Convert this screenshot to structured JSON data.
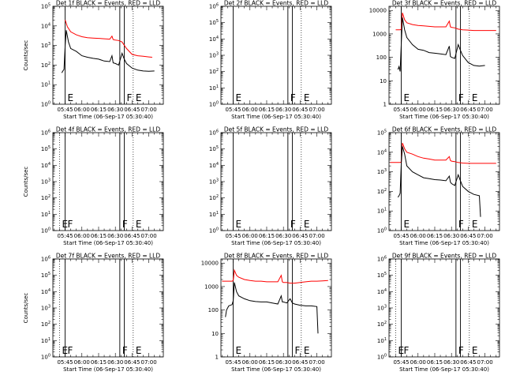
{
  "figure": {
    "xlabel": "Start Time (06-Sep-17 05:30:40)"
  },
  "chart_data": [
    {
      "type": "line",
      "title": "Det 1f BLACK = Events, RED = LLD",
      "ylabel": "Counts/sec",
      "y_scale": "log",
      "yticks": [
        "10^0",
        "10^1",
        "10^2",
        "10^3",
        "10^4",
        "10^5"
      ],
      "ylim": [
        1,
        100000
      ],
      "xlim": [
        "05:34",
        "07:13"
      ],
      "xticks": [
        "05:45",
        "06:00",
        "06:15",
        "06:30",
        "06:45",
        "07:00"
      ],
      "markers": [
        {
          "label": "E",
          "time": "05:45",
          "style": "solid"
        },
        {
          "label": "",
          "time": "06:34",
          "style": "solid"
        },
        {
          "label": "F",
          "time": "06:38",
          "style": "solid"
        },
        {
          "label": "E",
          "time": "06:46",
          "style": "dotted"
        }
      ],
      "series": [
        {
          "legend": "RED = LLD",
          "color": "#ff0000",
          "x": [
            "05:45",
            "05:47",
            "05:50",
            "05:55",
            "06:00",
            "06:05",
            "06:10",
            "06:15",
            "06:20",
            "06:25",
            "06:27",
            "06:28",
            "06:30",
            "06:33",
            "06:36",
            "06:40",
            "06:45",
            "06:50",
            "06:55",
            "07:00",
            "07:03"
          ],
          "y": [
            20000,
            9000,
            5000,
            3500,
            2800,
            2500,
            2400,
            2300,
            2200,
            2100,
            3000,
            2000,
            1900,
            1800,
            1500,
            700,
            350,
            300,
            280,
            260,
            250
          ]
        },
        {
          "legend": "BLACK = Events",
          "color": "#000000",
          "x": [
            "05:42",
            "05:43",
            "05:44",
            "05:45",
            "05:46",
            "05:47",
            "05:48",
            "05:50",
            "05:55",
            "06:00",
            "06:05",
            "06:10",
            "06:15",
            "06:20",
            "06:25",
            "06:27",
            "06:28",
            "06:30",
            "06:33",
            "06:36",
            "06:38",
            "06:40",
            "06:45",
            "06:50",
            "06:55",
            "07:00",
            "07:05"
          ],
          "y": [
            40,
            50,
            60,
            1000,
            6000,
            3000,
            1500,
            700,
            500,
            300,
            250,
            220,
            200,
            160,
            150,
            300,
            130,
            120,
            100,
            400,
            200,
            120,
            70,
            55,
            50,
            48,
            50
          ]
        }
      ]
    },
    {
      "type": "line",
      "title": "Det 2f BLACK = Events, RED = LLD",
      "ylabel": "",
      "y_scale": "log",
      "yticks": [
        "10^0",
        "10^1",
        "10^2",
        "10^3",
        "10^4",
        "10^5",
        "10^6"
      ],
      "ylim": [
        1,
        1000000
      ],
      "xlim": [
        "05:34",
        "07:13"
      ],
      "xticks": [
        "05:45",
        "06:00",
        "06:15",
        "06:30",
        "06:45",
        "07:00"
      ],
      "markers": [
        {
          "label": "E",
          "time": "05:45",
          "style": "solid"
        },
        {
          "label": "F",
          "time": "06:34",
          "style": "solid"
        },
        {
          "label": "",
          "time": "06:38",
          "style": "solid"
        },
        {
          "label": "E",
          "time": "06:46",
          "style": "dotted"
        }
      ],
      "series": []
    },
    {
      "type": "line",
      "title": "Det 3f BLACK = Events, RED = LLD",
      "ylabel": "",
      "y_scale": "log",
      "yticks": [
        "1",
        "10",
        "100",
        "1000",
        "10000"
      ],
      "ylim": [
        1,
        15000
      ],
      "xlim": [
        "05:34",
        "07:13"
      ],
      "xticks": [
        "05:45",
        "06:00",
        "06:15",
        "06:30",
        "06:45",
        "07:00"
      ],
      "markers": [
        {
          "label": "E",
          "time": "05:45",
          "style": "solid"
        },
        {
          "label": "F",
          "time": "06:34",
          "style": "solid"
        },
        {
          "label": "",
          "time": "06:38",
          "style": "solid"
        },
        {
          "label": "E",
          "time": "06:46",
          "style": "dotted"
        }
      ],
      "series": [
        {
          "legend": "RED = LLD",
          "color": "#ff0000",
          "x": [
            "05:40",
            "05:42",
            "05:44",
            "05:45",
            "05:46",
            "05:48",
            "05:50",
            "05:55",
            "06:00",
            "06:05",
            "06:10",
            "06:15",
            "06:20",
            "06:25",
            "06:28",
            "06:29",
            "06:30",
            "06:33",
            "06:36",
            "06:40",
            "06:45",
            "06:50",
            "06:55",
            "07:00",
            "07:05",
            "07:10"
          ],
          "y": [
            1500,
            1500,
            1500,
            1600,
            8000,
            4000,
            3000,
            2500,
            2300,
            2200,
            2100,
            2000,
            2000,
            2000,
            3500,
            2000,
            1900,
            1800,
            1600,
            1500,
            1450,
            1400,
            1400,
            1400,
            1400,
            1400
          ]
        },
        {
          "legend": "BLACK = Events",
          "color": "#000000",
          "x": [
            "05:42",
            "05:43",
            "05:44",
            "05:45",
            "05:46",
            "05:48",
            "05:50",
            "05:55",
            "06:00",
            "06:05",
            "06:10",
            "06:15",
            "06:20",
            "06:25",
            "06:28",
            "06:29",
            "06:30",
            "06:33",
            "06:36",
            "06:38",
            "06:40",
            "06:45",
            "06:50",
            "06:55",
            "07:00"
          ],
          "y": [
            30,
            40,
            25,
            400,
            5000,
            1500,
            700,
            350,
            220,
            200,
            160,
            150,
            140,
            130,
            300,
            110,
            100,
            90,
            350,
            200,
            120,
            60,
            45,
            42,
            45
          ]
        }
      ]
    },
    {
      "type": "line",
      "title": "Det 4f BLACK = Events, RED = LLD",
      "ylabel": "Counts/sec",
      "y_scale": "log",
      "yticks": [
        "10^0",
        "10^1",
        "10^2",
        "10^3",
        "10^4",
        "10^5",
        "10^6"
      ],
      "ylim": [
        1,
        1000000
      ],
      "xlim": [
        "05:34",
        "07:13"
      ],
      "xticks": [
        "05:45",
        "06:00",
        "06:15",
        "06:30",
        "06:45",
        "07:00"
      ],
      "markers": [
        {
          "label": "E",
          "time": "05:40",
          "style": "dotted"
        },
        {
          "label": "F",
          "time": "05:45",
          "style": "solid"
        },
        {
          "label": "F",
          "time": "06:34",
          "style": "solid"
        },
        {
          "label": "",
          "time": "06:38",
          "style": "solid"
        },
        {
          "label": "E",
          "time": "06:46",
          "style": "dotted"
        }
      ],
      "series": []
    },
    {
      "type": "line",
      "title": "Det 5f BLACK = Events, RED = LLD",
      "ylabel": "",
      "y_scale": "log",
      "yticks": [
        "10^0",
        "10^1",
        "10^2",
        "10^3",
        "10^4",
        "10^5",
        "10^6"
      ],
      "ylim": [
        1,
        1000000
      ],
      "xlim": [
        "05:34",
        "07:13"
      ],
      "xticks": [
        "05:45",
        "06:00",
        "06:15",
        "06:30",
        "06:45",
        "07:00"
      ],
      "markers": [
        {
          "label": "E",
          "time": "05:45",
          "style": "solid"
        },
        {
          "label": "F",
          "time": "06:34",
          "style": "solid"
        },
        {
          "label": "",
          "time": "06:38",
          "style": "solid"
        },
        {
          "label": "E",
          "time": "06:46",
          "style": "dotted"
        }
      ],
      "series": []
    },
    {
      "type": "line",
      "title": "Det 6f BLACK = Events, RED = LLD",
      "ylabel": "",
      "y_scale": "log",
      "yticks": [
        "10^0",
        "10^1",
        "10^2",
        "10^3",
        "10^4",
        "10^5"
      ],
      "ylim": [
        1,
        100000
      ],
      "xlim": [
        "05:34",
        "07:13"
      ],
      "xticks": [
        "05:45",
        "06:00",
        "06:15",
        "06:30",
        "06:45",
        "07:00"
      ],
      "markers": [
        {
          "label": "E",
          "time": "05:45",
          "style": "solid"
        },
        {
          "label": "F",
          "time": "06:34",
          "style": "solid"
        },
        {
          "label": "",
          "time": "06:38",
          "style": "solid"
        },
        {
          "label": "E",
          "time": "06:46",
          "style": "dotted"
        }
      ],
      "series": [
        {
          "legend": "RED = LLD",
          "color": "#ff0000",
          "x": [
            "05:35",
            "05:40",
            "05:44",
            "05:45",
            "05:46",
            "05:48",
            "05:50",
            "05:55",
            "06:00",
            "06:05",
            "06:10",
            "06:15",
            "06:20",
            "06:25",
            "06:28",
            "06:29",
            "06:30",
            "06:33",
            "06:36",
            "06:40",
            "06:45",
            "06:50",
            "06:55",
            "07:00",
            "07:05",
            "07:10"
          ],
          "y": [
            3000,
            3000,
            3000,
            3200,
            30000,
            15000,
            10000,
            8000,
            6000,
            5000,
            4500,
            4000,
            4000,
            4000,
            6000,
            3800,
            3500,
            3300,
            3000,
            2800,
            2700,
            2700,
            2700,
            2700,
            2700,
            2700
          ]
        },
        {
          "legend": "BLACK = Events",
          "color": "#000000",
          "x": [
            "05:42",
            "05:43",
            "05:44",
            "05:45",
            "05:46",
            "05:48",
            "05:50",
            "05:55",
            "06:00",
            "06:05",
            "06:10",
            "06:15",
            "06:20",
            "06:25",
            "06:28",
            "06:29",
            "06:30",
            "06:33",
            "06:36",
            "06:38",
            "06:40",
            "06:45",
            "06:50",
            "06:55",
            "06:56"
          ],
          "y": [
            50,
            60,
            80,
            3000,
            20000,
            8000,
            2000,
            1000,
            700,
            500,
            450,
            400,
            380,
            350,
            600,
            300,
            250,
            200,
            700,
            350,
            180,
            100,
            70,
            60,
            5
          ]
        }
      ]
    },
    {
      "type": "line",
      "title": "Det 7f BLACK = Events, RED = LLD",
      "ylabel": "Counts/sec",
      "y_scale": "log",
      "yticks": [
        "10^0",
        "10^1",
        "10^2",
        "10^3",
        "10^4",
        "10^5",
        "10^6"
      ],
      "ylim": [
        1,
        1000000
      ],
      "xlim": [
        "05:34",
        "07:13"
      ],
      "xticks": [
        "05:45",
        "06:00",
        "06:15",
        "06:30",
        "06:45",
        "07:00"
      ],
      "markers": [
        {
          "label": "E",
          "time": "05:40",
          "style": "dotted"
        },
        {
          "label": "F",
          "time": "05:45",
          "style": "solid"
        },
        {
          "label": "F",
          "time": "06:34",
          "style": "solid"
        },
        {
          "label": "",
          "time": "06:38",
          "style": "solid"
        },
        {
          "label": "E",
          "time": "06:46",
          "style": "dotted"
        }
      ],
      "series": []
    },
    {
      "type": "line",
      "title": "Det 8f BLACK = Events, RED = LLD",
      "ylabel": "",
      "y_scale": "log",
      "yticks": [
        "1",
        "10",
        "100",
        "1000",
        "10000"
      ],
      "ylim": [
        1,
        15000
      ],
      "xlim": [
        "05:34",
        "07:13"
      ],
      "xticks": [
        "05:45",
        "06:00",
        "06:15",
        "06:30",
        "06:45",
        "07:00"
      ],
      "markers": [
        {
          "label": "E",
          "time": "05:45",
          "style": "solid"
        },
        {
          "label": "",
          "time": "06:34",
          "style": "solid"
        },
        {
          "label": "F",
          "time": "06:38",
          "style": "solid"
        },
        {
          "label": "E",
          "time": "06:46",
          "style": "dotted"
        }
      ],
      "series": [
        {
          "legend": "RED = LLD",
          "color": "#ff0000",
          "x": [
            "05:35",
            "05:40",
            "05:44",
            "05:45",
            "05:46",
            "05:48",
            "05:50",
            "05:55",
            "06:00",
            "06:05",
            "06:10",
            "06:15",
            "06:20",
            "06:25",
            "06:28",
            "06:29",
            "06:30",
            "06:33",
            "06:36",
            "06:40",
            "06:45",
            "06:50",
            "06:55",
            "07:00",
            "07:05",
            "07:10"
          ],
          "y": [
            1700,
            1700,
            1700,
            1800,
            5000,
            3000,
            2500,
            2000,
            1800,
            1700,
            1700,
            1600,
            1600,
            1600,
            3000,
            1600,
            1500,
            1500,
            1400,
            1400,
            1500,
            1600,
            1700,
            1700,
            1750,
            1800
          ]
        },
        {
          "legend": "BLACK = Events",
          "color": "#000000",
          "x": [
            "05:38",
            "05:39",
            "05:41",
            "05:44",
            "05:45",
            "05:46",
            "05:48",
            "05:50",
            "05:55",
            "06:00",
            "06:05",
            "06:10",
            "06:15",
            "06:20",
            "06:25",
            "06:28",
            "06:29",
            "06:30",
            "06:33",
            "06:36",
            "06:38",
            "06:40",
            "06:45",
            "06:50",
            "06:55",
            "07:00",
            "07:01"
          ],
          "y": [
            50,
            100,
            150,
            170,
            250,
            1500,
            600,
            400,
            300,
            250,
            230,
            220,
            220,
            200,
            180,
            400,
            220,
            220,
            200,
            300,
            200,
            180,
            160,
            150,
            150,
            140,
            10
          ]
        }
      ]
    },
    {
      "type": "line",
      "title": "Det 9f BLACK = Events, RED = LLD",
      "ylabel": "",
      "y_scale": "log",
      "yticks": [
        "10^0",
        "10^1",
        "10^2",
        "10^3",
        "10^4",
        "10^5",
        "10^6"
      ],
      "ylim": [
        1,
        1000000
      ],
      "xlim": [
        "05:34",
        "07:13"
      ],
      "xticks": [
        "05:45",
        "06:00",
        "06:15",
        "06:30",
        "06:45",
        "07:00"
      ],
      "markers": [
        {
          "label": "E",
          "time": "05:40",
          "style": "dotted"
        },
        {
          "label": "F",
          "time": "05:45",
          "style": "solid"
        },
        {
          "label": "F",
          "time": "06:34",
          "style": "solid"
        },
        {
          "label": "",
          "time": "06:38",
          "style": "solid"
        },
        {
          "label": "E",
          "time": "06:46",
          "style": "dotted"
        }
      ],
      "series": []
    }
  ]
}
